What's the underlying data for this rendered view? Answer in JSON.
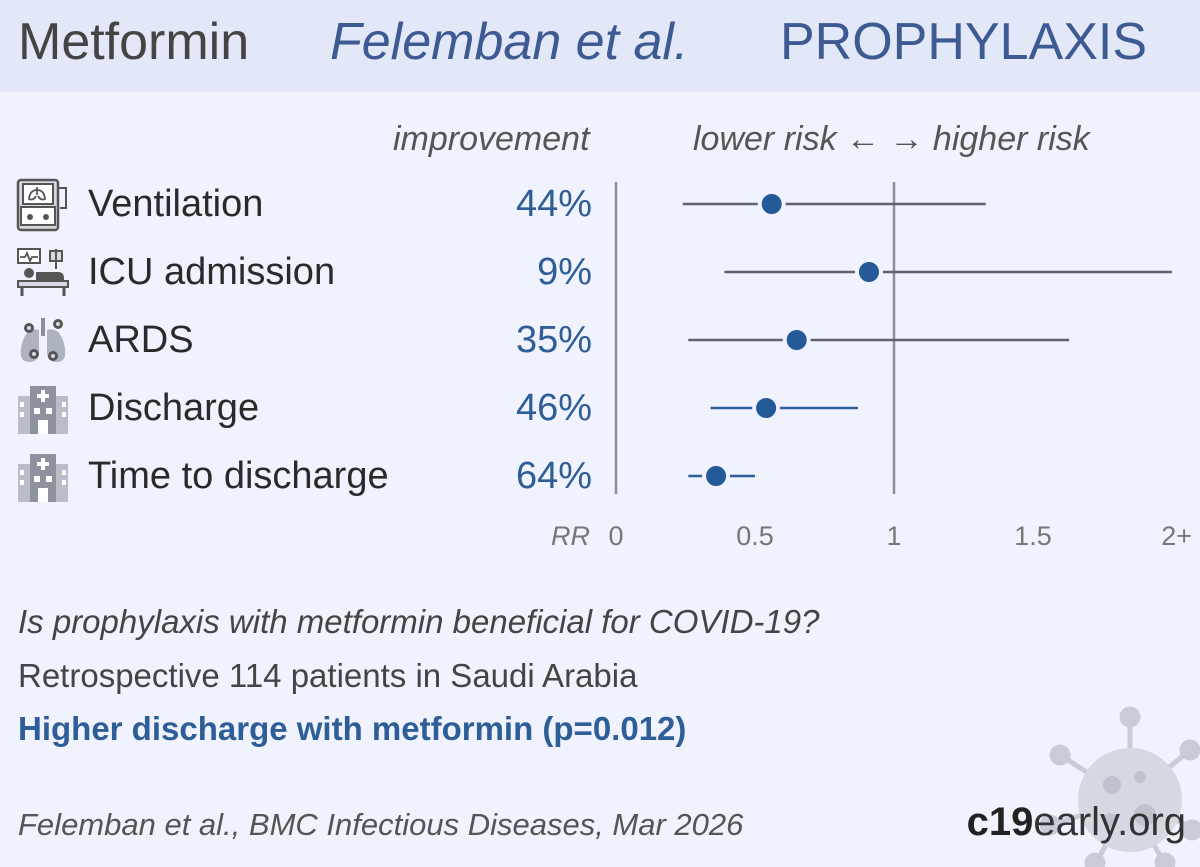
{
  "header": {
    "drug": "Metformin",
    "authors": "Felemban et al.",
    "study_type": "PROPHYLAXIS"
  },
  "columns": {
    "improvement": "improvement",
    "risk_direction": "lower risk ← → higher risk"
  },
  "rows": [
    {
      "label": "Ventilation",
      "improvement": "44%",
      "icon": "ventilator-icon"
    },
    {
      "label": "ICU admission",
      "improvement": "9%",
      "icon": "icu-bed-icon"
    },
    {
      "label": "ARDS",
      "improvement": "35%",
      "icon": "lungs-virus-icon"
    },
    {
      "label": "Discharge",
      "improvement": "46%",
      "icon": "hospital-icon"
    },
    {
      "label": "Time to discharge",
      "improvement": "64%",
      "icon": "hospital-icon"
    }
  ],
  "chart_data": {
    "type": "forest",
    "x_axis_label": "RR",
    "xlim": [
      0,
      2
    ],
    "ticks": [
      {
        "value": 0,
        "label": "0"
      },
      {
        "value": 0.5,
        "label": "0.5"
      },
      {
        "value": 1,
        "label": "1"
      },
      {
        "value": 1.5,
        "label": "1.5"
      },
      {
        "value": 2,
        "label": "2+"
      }
    ],
    "reference_line": 1,
    "series": [
      {
        "name": "Ventilation",
        "rr": 0.56,
        "ci_low": 0.24,
        "ci_high": 1.33,
        "color": "#5a6474"
      },
      {
        "name": "ICU admission",
        "rr": 0.91,
        "ci_low": 0.39,
        "ci_high": 2.0,
        "color": "#5a6474"
      },
      {
        "name": "ARDS",
        "rr": 0.65,
        "ci_low": 0.26,
        "ci_high": 1.63,
        "color": "#5a6474"
      },
      {
        "name": "Discharge",
        "rr": 0.54,
        "ci_low": 0.34,
        "ci_high": 0.87,
        "color": "#2d5e97"
      },
      {
        "name": "Time to discharge",
        "rr": 0.36,
        "ci_low": 0.26,
        "ci_high": 0.5,
        "color": "#2d5e97"
      }
    ],
    "point_color": "#245a98"
  },
  "summary": {
    "question": "Is prophylaxis with metformin beneficial for COVID-19?",
    "design": "Retrospective 114 patients in Saudi Arabia",
    "conclusion": "Higher discharge with metformin (p=0.012)"
  },
  "footer": {
    "citation": "Felemban et al., BMC Infectious Diseases, Mar 2026",
    "brand_bold": "c19",
    "brand_rest": "early.org"
  }
}
